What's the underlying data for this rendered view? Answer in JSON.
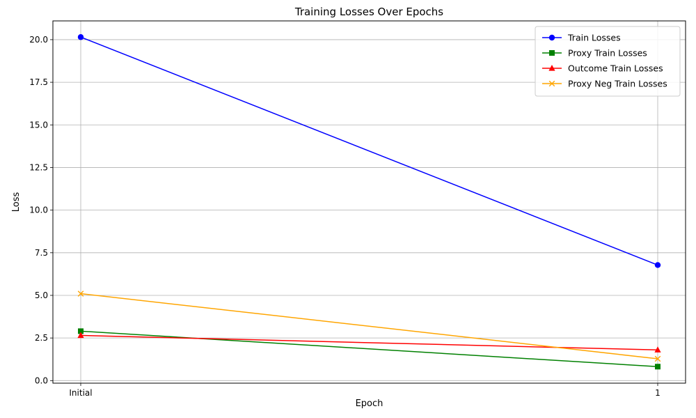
{
  "chart_data": {
    "type": "line",
    "title": "Training Losses Over Epochs",
    "xlabel": "Epoch",
    "ylabel": "Loss",
    "categories": [
      "Initial",
      "1"
    ],
    "ylim": [
      -0.15,
      21.1
    ],
    "yticks": [
      0.0,
      2.5,
      5.0,
      7.5,
      10.0,
      12.5,
      15.0,
      17.5,
      20.0
    ],
    "ytick_labels": [
      "0.0",
      "2.5",
      "5.0",
      "7.5",
      "10.0",
      "12.5",
      "15.0",
      "17.5",
      "20.0"
    ],
    "grid": true,
    "legend_position": "top-right",
    "series": [
      {
        "name": "Train Losses",
        "values": [
          20.15,
          6.78
        ],
        "color": "#0000ff",
        "marker": "circle"
      },
      {
        "name": "Proxy Train Losses",
        "values": [
          2.9,
          0.82
        ],
        "color": "#008000",
        "marker": "square"
      },
      {
        "name": "Outcome Train Losses",
        "values": [
          2.65,
          1.8
        ],
        "color": "#ff0000",
        "marker": "triangle-up"
      },
      {
        "name": "Proxy Neg Train Losses",
        "values": [
          5.1,
          1.28
        ],
        "color": "#ffa500",
        "marker": "x"
      }
    ]
  }
}
